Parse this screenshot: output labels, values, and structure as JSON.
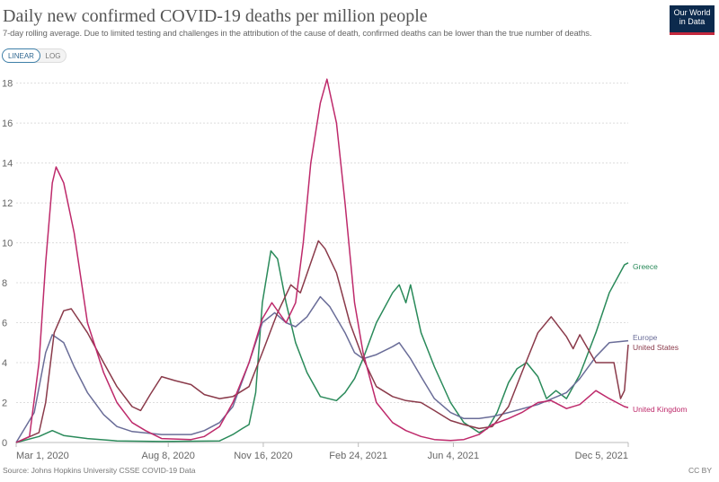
{
  "header": {
    "title": "Daily new confirmed COVID-19 deaths per million people",
    "subtitle": "7-day rolling average. Due to limited testing and challenges in the attribution of the cause of death, confirmed deaths can be lower than the true number of deaths.",
    "logo_text": "Our World in Data",
    "logo_color": "#0c2a4d"
  },
  "scale_toggle": {
    "linear_label": "LINEAR",
    "log_label": "LOG",
    "selected": "LINEAR"
  },
  "footer": {
    "source": "Source: Johns Hopkins University CSSE COVID-19 Data",
    "license": "CC BY"
  },
  "chart_data": {
    "type": "line",
    "title": "Daily new confirmed COVID-19 deaths per million people",
    "xlabel": "",
    "ylabel": "",
    "xlim": [
      "2020-03-01",
      "2021-12-05"
    ],
    "ylim": [
      0,
      18
    ],
    "yticks": [
      0,
      2,
      4,
      6,
      8,
      10,
      12,
      14,
      16,
      18
    ],
    "xticks": [
      {
        "date": "2020-03-01",
        "label": "Mar 1, 2020"
      },
      {
        "date": "2020-08-08",
        "label": "Aug 8, 2020"
      },
      {
        "date": "2020-11-16",
        "label": "Nov 16, 2020"
      },
      {
        "date": "2021-02-24",
        "label": "Feb 24, 2021"
      },
      {
        "date": "2021-06-04",
        "label": "Jun 4, 2021"
      },
      {
        "date": "2021-12-05",
        "label": "Dec 5, 2021"
      }
    ],
    "grid": "horizontal-dotted",
    "legend": "line-end labels",
    "series": [
      {
        "name": "Greece",
        "color": "#2a8a5a",
        "points": [
          [
            "2020-03-01",
            0
          ],
          [
            "2020-03-25",
            0.3
          ],
          [
            "2020-04-08",
            0.6
          ],
          [
            "2020-04-20",
            0.35
          ],
          [
            "2020-05-15",
            0.2
          ],
          [
            "2020-06-15",
            0.08
          ],
          [
            "2020-08-01",
            0.05
          ],
          [
            "2020-10-01",
            0.08
          ],
          [
            "2020-10-15",
            0.4
          ],
          [
            "2020-10-25",
            0.7
          ],
          [
            "2020-11-01",
            0.9
          ],
          [
            "2020-11-08",
            2.5
          ],
          [
            "2020-11-15",
            7
          ],
          [
            "2020-11-24",
            9.6
          ],
          [
            "2020-12-01",
            9.2
          ],
          [
            "2020-12-10",
            7
          ],
          [
            "2020-12-20",
            5
          ],
          [
            "2021-01-01",
            3.5
          ],
          [
            "2021-01-15",
            2.3
          ],
          [
            "2021-02-01",
            2.1
          ],
          [
            "2021-02-10",
            2.5
          ],
          [
            "2021-02-20",
            3.2
          ],
          [
            "2021-03-01",
            4.2
          ],
          [
            "2021-03-15",
            6
          ],
          [
            "2021-04-01",
            7.5
          ],
          [
            "2021-04-08",
            7.9
          ],
          [
            "2021-04-15",
            7.0
          ],
          [
            "2021-04-20",
            7.9
          ],
          [
            "2021-05-01",
            5.5
          ],
          [
            "2021-05-15",
            3.8
          ],
          [
            "2021-06-01",
            2.0
          ],
          [
            "2021-06-15",
            1.0
          ],
          [
            "2021-07-01",
            0.5
          ],
          [
            "2021-07-10",
            0.7
          ],
          [
            "2021-07-20",
            1.5
          ],
          [
            "2021-08-01",
            3
          ],
          [
            "2021-08-10",
            3.7
          ],
          [
            "2021-08-20",
            4.0
          ],
          [
            "2021-09-01",
            3.3
          ],
          [
            "2021-09-10",
            2.2
          ],
          [
            "2021-09-20",
            2.6
          ],
          [
            "2021-10-01",
            2.2
          ],
          [
            "2021-10-15",
            3.4
          ],
          [
            "2021-11-01",
            5.5
          ],
          [
            "2021-11-15",
            7.5
          ],
          [
            "2021-12-01",
            8.9
          ],
          [
            "2021-12-05",
            9.0
          ]
        ]
      },
      {
        "name": "Europe",
        "color": "#6a6d98",
        "points": [
          [
            "2020-03-01",
            0
          ],
          [
            "2020-03-20",
            1.5
          ],
          [
            "2020-04-01",
            4.5
          ],
          [
            "2020-04-08",
            5.4
          ],
          [
            "2020-04-20",
            5
          ],
          [
            "2020-05-01",
            3.8
          ],
          [
            "2020-05-15",
            2.5
          ],
          [
            "2020-06-01",
            1.4
          ],
          [
            "2020-06-15",
            0.8
          ],
          [
            "2020-07-01",
            0.55
          ],
          [
            "2020-08-01",
            0.4
          ],
          [
            "2020-09-01",
            0.4
          ],
          [
            "2020-09-15",
            0.6
          ],
          [
            "2020-10-01",
            1.0
          ],
          [
            "2020-10-15",
            1.8
          ],
          [
            "2020-11-01",
            4
          ],
          [
            "2020-11-15",
            6
          ],
          [
            "2020-11-28",
            6.5
          ],
          [
            "2020-12-10",
            6.0
          ],
          [
            "2020-12-20",
            5.8
          ],
          [
            "2021-01-01",
            6.3
          ],
          [
            "2021-01-15",
            7.3
          ],
          [
            "2021-01-25",
            6.8
          ],
          [
            "2021-02-10",
            5.5
          ],
          [
            "2021-02-20",
            4.5
          ],
          [
            "2021-03-01",
            4.2
          ],
          [
            "2021-03-15",
            4.4
          ],
          [
            "2021-04-01",
            4.8
          ],
          [
            "2021-04-08",
            5.0
          ],
          [
            "2021-04-20",
            4.2
          ],
          [
            "2021-05-01",
            3.3
          ],
          [
            "2021-05-15",
            2.2
          ],
          [
            "2021-06-01",
            1.5
          ],
          [
            "2021-06-15",
            1.2
          ],
          [
            "2021-07-01",
            1.2
          ],
          [
            "2021-07-15",
            1.3
          ],
          [
            "2021-08-01",
            1.5
          ],
          [
            "2021-09-01",
            1.9
          ],
          [
            "2021-10-01",
            2.5
          ],
          [
            "2021-10-15",
            3.2
          ],
          [
            "2021-11-01",
            4.3
          ],
          [
            "2021-11-15",
            5.0
          ],
          [
            "2021-12-05",
            5.1
          ]
        ]
      },
      {
        "name": "United States",
        "color": "#8a3a4a",
        "points": [
          [
            "2020-03-01",
            0
          ],
          [
            "2020-03-25",
            0.5
          ],
          [
            "2020-04-01",
            2
          ],
          [
            "2020-04-10",
            5.5
          ],
          [
            "2020-04-20",
            6.6
          ],
          [
            "2020-04-28",
            6.7
          ],
          [
            "2020-05-15",
            5.5
          ],
          [
            "2020-06-01",
            4
          ],
          [
            "2020-06-15",
            2.8
          ],
          [
            "2020-07-01",
            1.8
          ],
          [
            "2020-07-10",
            1.6
          ],
          [
            "2020-07-20",
            2.4
          ],
          [
            "2020-08-01",
            3.3
          ],
          [
            "2020-08-15",
            3.1
          ],
          [
            "2020-09-01",
            2.9
          ],
          [
            "2020-09-15",
            2.4
          ],
          [
            "2020-10-01",
            2.2
          ],
          [
            "2020-10-15",
            2.3
          ],
          [
            "2020-11-01",
            2.8
          ],
          [
            "2020-11-15",
            4.5
          ],
          [
            "2020-12-01",
            6.5
          ],
          [
            "2020-12-15",
            7.9
          ],
          [
            "2020-12-25",
            7.5
          ],
          [
            "2021-01-05",
            9
          ],
          [
            "2021-01-13",
            10.1
          ],
          [
            "2021-01-20",
            9.7
          ],
          [
            "2021-02-01",
            8.5
          ],
          [
            "2021-02-15",
            6
          ],
          [
            "2021-03-01",
            4.2
          ],
          [
            "2021-03-15",
            2.8
          ],
          [
            "2021-04-01",
            2.3
          ],
          [
            "2021-04-15",
            2.1
          ],
          [
            "2021-05-01",
            2.0
          ],
          [
            "2021-05-15",
            1.6
          ],
          [
            "2021-06-01",
            1.1
          ],
          [
            "2021-06-15",
            0.9
          ],
          [
            "2021-07-01",
            0.7
          ],
          [
            "2021-07-15",
            0.8
          ],
          [
            "2021-08-01",
            1.8
          ],
          [
            "2021-08-15",
            3.5
          ],
          [
            "2021-09-01",
            5.5
          ],
          [
            "2021-09-15",
            6.3
          ],
          [
            "2021-10-01",
            5.3
          ],
          [
            "2021-10-08",
            4.7
          ],
          [
            "2021-10-15",
            5.4
          ],
          [
            "2021-11-01",
            4.0
          ],
          [
            "2021-11-20",
            4.0
          ],
          [
            "2021-11-27",
            2.2
          ],
          [
            "2021-12-01",
            2.6
          ],
          [
            "2021-12-05",
            4.9
          ]
        ]
      },
      {
        "name": "United Kingdom",
        "color": "#be2a6b",
        "points": [
          [
            "2020-03-01",
            0
          ],
          [
            "2020-03-15",
            0.3
          ],
          [
            "2020-03-25",
            4
          ],
          [
            "2020-04-01",
            9
          ],
          [
            "2020-04-08",
            13
          ],
          [
            "2020-04-12",
            13.8
          ],
          [
            "2020-04-20",
            13
          ],
          [
            "2020-05-01",
            10.5
          ],
          [
            "2020-05-15",
            6
          ],
          [
            "2020-06-01",
            3.5
          ],
          [
            "2020-06-15",
            2
          ],
          [
            "2020-07-01",
            1
          ],
          [
            "2020-07-15",
            0.6
          ],
          [
            "2020-08-01",
            0.2
          ],
          [
            "2020-09-01",
            0.15
          ],
          [
            "2020-09-15",
            0.3
          ],
          [
            "2020-10-01",
            0.8
          ],
          [
            "2020-10-15",
            2
          ],
          [
            "2020-11-01",
            4
          ],
          [
            "2020-11-15",
            6.2
          ],
          [
            "2020-11-25",
            7.0
          ],
          [
            "2020-12-10",
            6
          ],
          [
            "2020-12-20",
            7
          ],
          [
            "2020-12-28",
            10
          ],
          [
            "2021-01-05",
            14
          ],
          [
            "2021-01-15",
            17
          ],
          [
            "2021-01-22",
            18.2
          ],
          [
            "2021-02-01",
            16
          ],
          [
            "2021-02-10",
            12
          ],
          [
            "2021-02-20",
            7
          ],
          [
            "2021-03-01",
            4.5
          ],
          [
            "2021-03-15",
            2
          ],
          [
            "2021-04-01",
            1
          ],
          [
            "2021-04-15",
            0.6
          ],
          [
            "2021-05-01",
            0.3
          ],
          [
            "2021-05-15",
            0.15
          ],
          [
            "2021-06-01",
            0.1
          ],
          [
            "2021-06-15",
            0.15
          ],
          [
            "2021-07-01",
            0.4
          ],
          [
            "2021-07-15",
            0.9
          ],
          [
            "2021-08-01",
            1.2
          ],
          [
            "2021-08-15",
            1.5
          ],
          [
            "2021-09-01",
            2.0
          ],
          [
            "2021-09-15",
            2.1
          ],
          [
            "2021-10-01",
            1.7
          ],
          [
            "2021-10-15",
            1.9
          ],
          [
            "2021-11-01",
            2.6
          ],
          [
            "2021-11-15",
            2.2
          ],
          [
            "2021-12-01",
            1.8
          ],
          [
            "2021-12-05",
            1.75
          ]
        ]
      }
    ]
  }
}
